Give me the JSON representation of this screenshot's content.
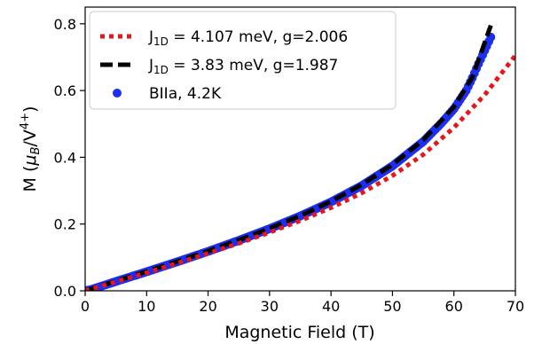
{
  "chart_data": {
    "type": "line",
    "xlabel": "Magnetic Field (T)",
    "ylabel_main": "M (",
    "ylabel_mu": "μ",
    "ylabel_musub": "B",
    "ylabel_mid": "/V",
    "ylabel_sup": "4+",
    "ylabel_end": ")",
    "xlim": [
      0,
      70
    ],
    "ylim": [
      0,
      0.85
    ],
    "x_ticks": [
      0,
      10,
      20,
      30,
      40,
      50,
      60,
      70
    ],
    "y_ticks": [
      0.0,
      0.2,
      0.4,
      0.6,
      0.8
    ],
    "x_tick_labels": [
      "0",
      "10",
      "20",
      "30",
      "40",
      "50",
      "60",
      "70"
    ],
    "y_tick_labels": [
      "0.0",
      "0.2",
      "0.4",
      "0.6",
      "0.8"
    ],
    "grid": false,
    "legend_position": "top-left",
    "series": [
      {
        "name_prefix": "J",
        "name_sub": "1D",
        "name_suffix": " = 4.107 meV, g=2.006",
        "style": "dotted",
        "color": "#e8151b",
        "x": [
          0,
          5,
          10,
          15,
          20,
          25,
          30,
          35,
          40,
          45,
          50,
          55,
          60,
          65,
          70
        ],
        "y": [
          0,
          0.027,
          0.054,
          0.083,
          0.112,
          0.142,
          0.175,
          0.21,
          0.249,
          0.293,
          0.345,
          0.408,
          0.489,
          0.587,
          0.705
        ]
      },
      {
        "name_prefix": "J",
        "name_sub": "1D",
        "name_suffix": " = 3.83 meV, g=1.987",
        "style": "dashed",
        "color": "#000000",
        "x": [
          0,
          5,
          10,
          15,
          20,
          25,
          30,
          35,
          40,
          45,
          50,
          55,
          60,
          63,
          66
        ],
        "y": [
          0,
          0.029,
          0.058,
          0.088,
          0.119,
          0.152,
          0.187,
          0.225,
          0.268,
          0.318,
          0.378,
          0.452,
          0.551,
          0.64,
          0.795
        ]
      },
      {
        "name": "BIIa, 4.2K",
        "style": "markers",
        "color": "#1c2ff0",
        "x": [
          0,
          1,
          2,
          3,
          5,
          10,
          15,
          20,
          25,
          30,
          35,
          40,
          45,
          50,
          55,
          58,
          60,
          62,
          63,
          64,
          65,
          66
        ],
        "y": [
          0,
          0.004,
          0.01,
          0.016,
          0.028,
          0.057,
          0.087,
          0.118,
          0.151,
          0.186,
          0.224,
          0.266,
          0.315,
          0.374,
          0.447,
          0.503,
          0.545,
          0.6,
          0.638,
          0.68,
          0.72,
          0.76
        ]
      }
    ]
  }
}
